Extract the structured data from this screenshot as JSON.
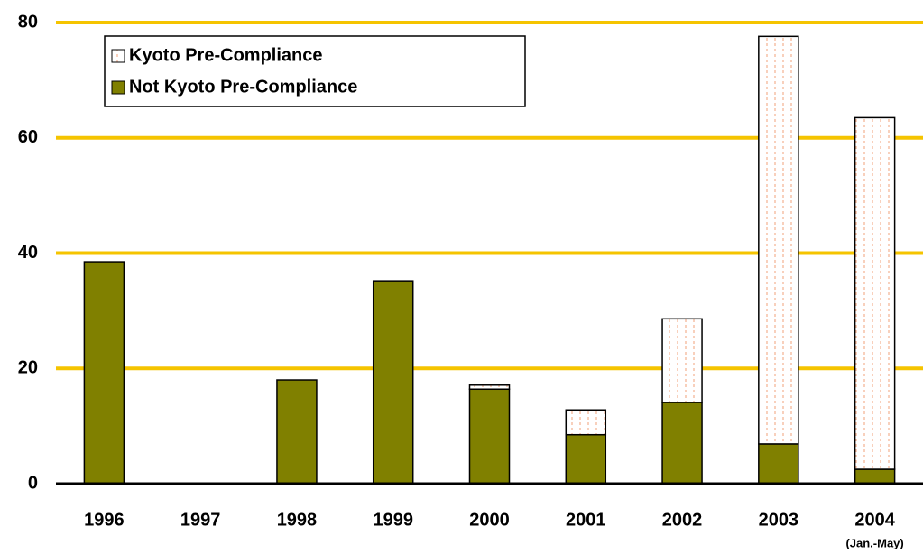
{
  "chart_data": {
    "type": "stacked_bar",
    "categories": [
      "1996",
      "1997",
      "1998",
      "1999",
      "2000",
      "2001",
      "2002",
      "2003",
      "2004"
    ],
    "annotations": [
      "(Jan.-May)"
    ],
    "series": [
      {
        "name": "Not Kyoto Pre-Compliance",
        "color": "#808000",
        "values": [
          38.5,
          0,
          18.0,
          35.2,
          16.4,
          8.5,
          14.1,
          6.9,
          2.5
        ]
      },
      {
        "name": "Kyoto Pre-Compliance",
        "color": "#f2a07a",
        "values": [
          0,
          0,
          0,
          0,
          0.7,
          4.3,
          14.5,
          70.7,
          61.0
        ]
      }
    ],
    "ylim": [
      0,
      80
    ],
    "yticks": [
      0,
      20,
      40,
      60,
      80
    ],
    "grid": true,
    "grid_color": "#f5c400"
  }
}
